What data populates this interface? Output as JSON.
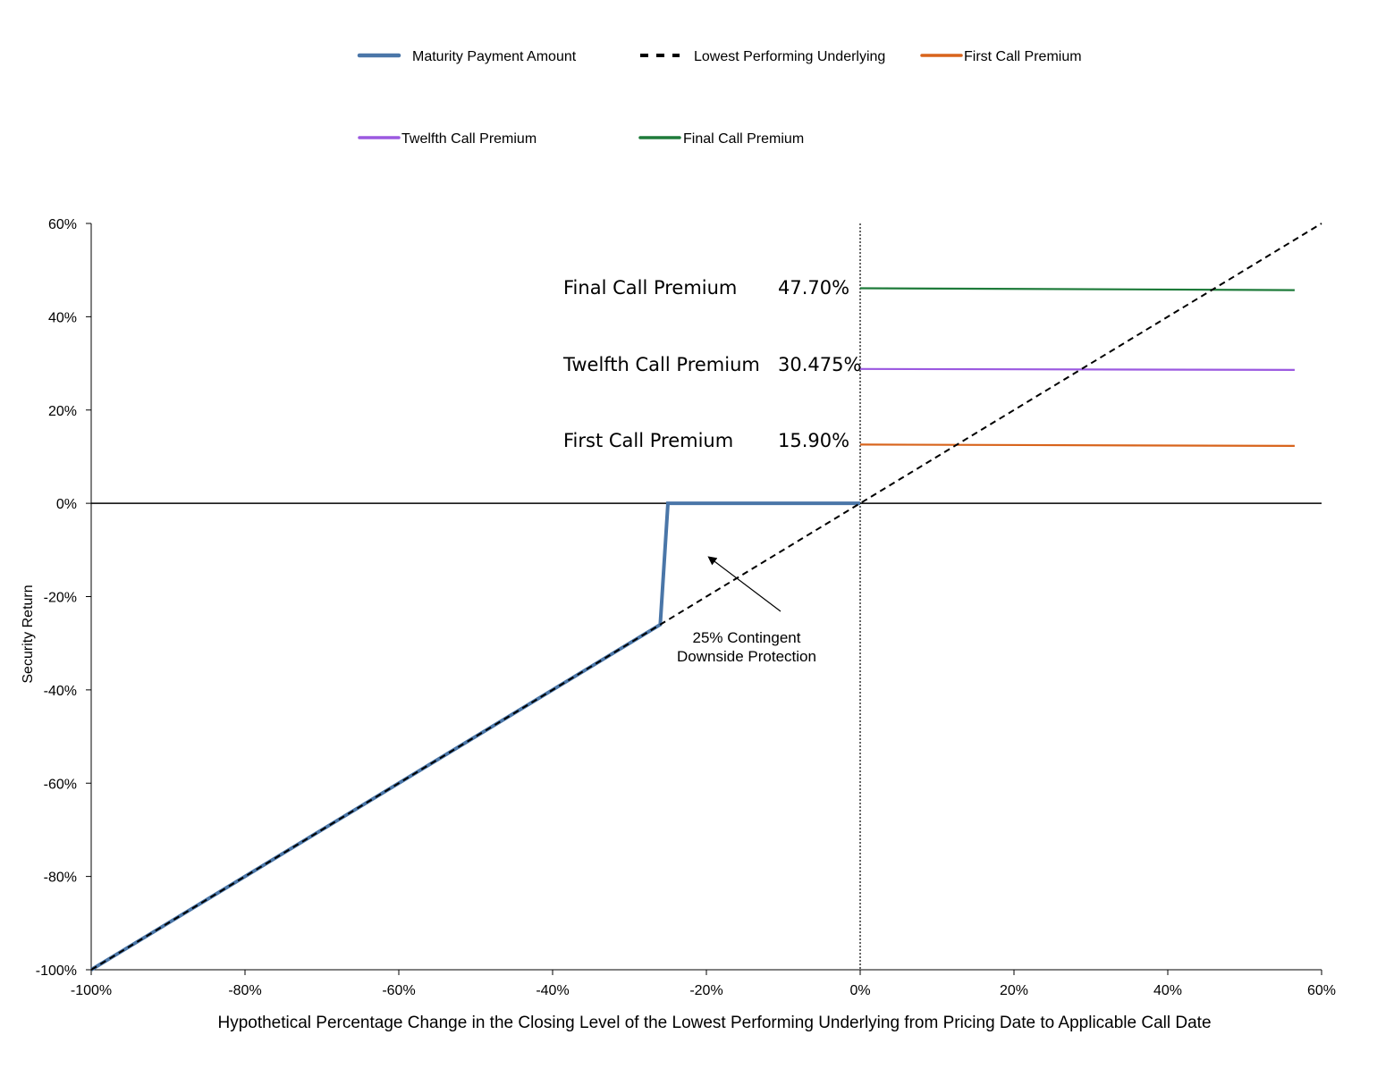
{
  "chart_data": {
    "type": "line",
    "xlabel": "Hypothetical Percentage Change in the Closing Level of the Lowest Performing Underlying from Pricing Date to Applicable Call Date",
    "ylabel": "Security Return",
    "xlim": [
      -100,
      60
    ],
    "ylim": [
      -100,
      60
    ],
    "x_ticks": [
      -100,
      -80,
      -60,
      -40,
      -20,
      0,
      20,
      40,
      60
    ],
    "x_tick_labels": [
      "-100%",
      "-80%",
      "-60%",
      "-40%",
      "-20%",
      "0%",
      "20%",
      "40%",
      "60%"
    ],
    "y_ticks": [
      60,
      40,
      20,
      0,
      -20,
      -40,
      -60,
      -80,
      -100
    ],
    "y_tick_labels": [
      "60%",
      "40%",
      "20%",
      "0%",
      "-20%",
      "-40%",
      "-60%",
      "-80%",
      "-100%"
    ],
    "grid": false,
    "legend_placement": "top",
    "series": [
      {
        "name": "Maturity Payment Amount",
        "color": "#4a76a8",
        "style": "solid",
        "points": [
          [
            -100,
            -100
          ],
          [
            -26,
            -26
          ],
          [
            -25,
            0
          ],
          [
            0,
            0
          ]
        ]
      },
      {
        "name": "Lowest Performing Underlying",
        "color": "#000000",
        "style": "dashed",
        "points": [
          [
            -100,
            -100
          ],
          [
            60,
            60
          ]
        ]
      },
      {
        "name": "First Call Premium",
        "color": "#d8641c",
        "style": "solid",
        "points": [
          [
            0,
            12.6
          ],
          [
            56.5,
            12.3
          ]
        ]
      },
      {
        "name": "Twelfth Call Premium",
        "color": "#9b59e0",
        "style": "solid",
        "points": [
          [
            0,
            28.8
          ],
          [
            56.5,
            28.6
          ]
        ]
      },
      {
        "name": "Final Call Premium",
        "color": "#1e7b3a",
        "style": "solid",
        "points": [
          [
            0,
            46.1
          ],
          [
            56.5,
            45.7
          ]
        ]
      }
    ],
    "premium_labels": [
      {
        "name": "Final Call Premium",
        "value": "47.70%"
      },
      {
        "name": "Twelfth Call Premium",
        "value": "30.475%"
      },
      {
        "name": "First Call Premium",
        "value": "15.90%"
      }
    ],
    "annotation": {
      "lines": [
        "25% Contingent",
        "Downside Protection"
      ],
      "arrow_to": [
        -20,
        -11
      ]
    },
    "vertical_reference": {
      "x": 0,
      "style": "dotted"
    },
    "horizontal_reference": {
      "y": 0,
      "style": "solid"
    }
  }
}
